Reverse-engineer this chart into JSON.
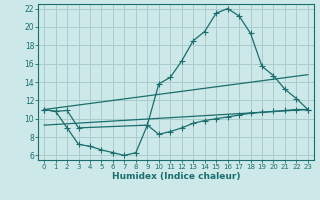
{
  "background_color": "#cce8e8",
  "grid_color": "#aacccc",
  "line_color": "#1a6e6e",
  "xlabel": "Humidex (Indice chaleur)",
  "xlim": [
    -0.5,
    23.5
  ],
  "ylim": [
    5.5,
    22.5
  ],
  "yticks": [
    6,
    8,
    10,
    12,
    14,
    16,
    18,
    20,
    22
  ],
  "xticks": [
    0,
    1,
    2,
    3,
    4,
    5,
    6,
    7,
    8,
    9,
    10,
    11,
    12,
    13,
    14,
    15,
    16,
    17,
    18,
    19,
    20,
    21,
    22,
    23
  ],
  "curve_top": {
    "x": [
      0,
      1,
      2,
      3,
      9,
      10,
      11,
      12,
      13,
      14,
      15,
      16,
      17,
      18,
      19,
      20,
      21,
      22,
      23
    ],
    "y": [
      11.0,
      10.8,
      10.9,
      9.0,
      9.3,
      13.8,
      14.5,
      16.3,
      18.5,
      19.5,
      21.5,
      22.0,
      21.2,
      19.3,
      15.7,
      14.7,
      13.2,
      12.2,
      11.0
    ]
  },
  "curve_bottom": {
    "x": [
      0,
      1,
      2,
      3,
      4,
      5,
      6,
      7,
      8,
      9,
      10,
      11,
      12,
      13,
      14,
      15,
      16,
      17,
      18,
      19,
      20,
      21,
      22,
      23
    ],
    "y": [
      11.0,
      10.8,
      9.0,
      7.2,
      7.0,
      6.6,
      6.3,
      6.0,
      6.3,
      9.3,
      8.3,
      8.6,
      9.0,
      9.5,
      9.8,
      10.0,
      10.2,
      10.4,
      10.6,
      10.7,
      10.8,
      10.9,
      11.0,
      11.0
    ]
  },
  "line1": {
    "x": [
      0,
      23
    ],
    "y": [
      11.0,
      14.8
    ]
  },
  "line2": {
    "x": [
      0,
      23
    ],
    "y": [
      9.3,
      11.0
    ]
  }
}
